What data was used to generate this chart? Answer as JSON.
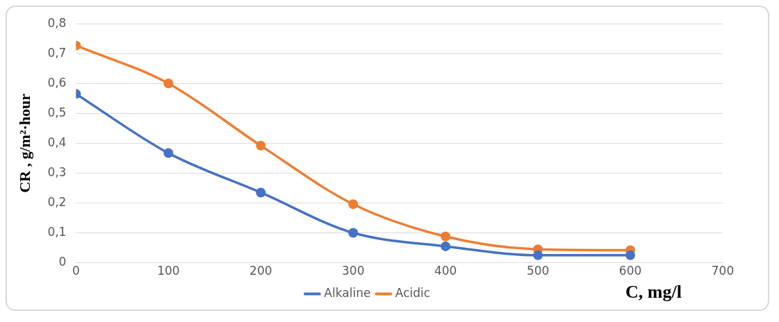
{
  "chart_data": {
    "type": "line",
    "xlabel": "C, mg/l",
    "ylabel": "CR , g/m²·hour",
    "x": [
      0,
      100,
      200,
      300,
      400,
      500,
      600
    ],
    "series": [
      {
        "name": "Alkaline",
        "color": "#4472c4",
        "values": [
          0.565,
          0.367,
          0.235,
          0.1,
          0.055,
          0.025,
          0.025
        ]
      },
      {
        "name": "Acidic",
        "color": "#ed7d31",
        "values": [
          0.727,
          0.6,
          0.392,
          0.196,
          0.088,
          0.045,
          0.042
        ]
      }
    ],
    "xlim": [
      0,
      700
    ],
    "xticks": [
      0,
      100,
      200,
      300,
      400,
      500,
      600,
      700
    ],
    "ylim": [
      0,
      0.8
    ],
    "yticks": [
      {
        "value": 0,
        "label": "0"
      },
      {
        "value": 0.1,
        "label": "0,1"
      },
      {
        "value": 0.2,
        "label": "0,2"
      },
      {
        "value": 0.3,
        "label": "0,3"
      },
      {
        "value": 0.4,
        "label": "0,4"
      },
      {
        "value": 0.5,
        "label": "0,5"
      },
      {
        "value": 0.6,
        "label": "0,6"
      },
      {
        "value": 0.7,
        "label": "0,7"
      },
      {
        "value": 0.8,
        "label": "0,8"
      }
    ],
    "grid": "y",
    "legend": "bottom",
    "marker": "circle",
    "line_style": "solid"
  }
}
